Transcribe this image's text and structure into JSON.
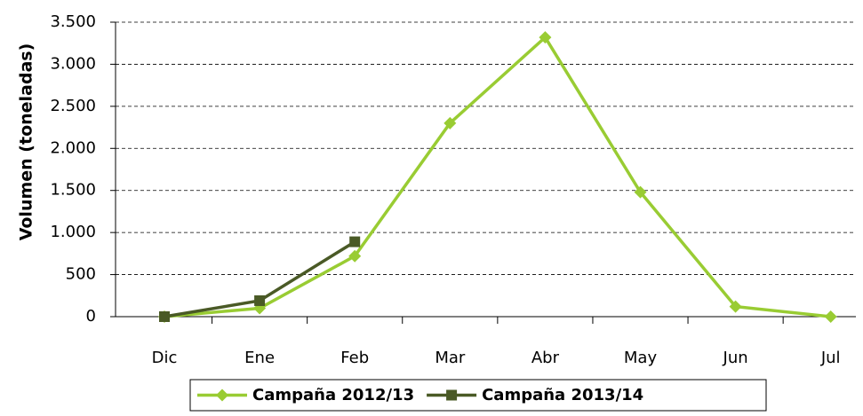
{
  "chart_data": {
    "type": "line",
    "y_label": "Volumen (toneladas)",
    "categories": [
      "Dic",
      "Ene",
      "Feb",
      "Mar",
      "Abr",
      "May",
      "Jun",
      "Jul"
    ],
    "series": [
      {
        "name": "Campaña 2012/13",
        "color": "#99cc33",
        "marker": "diamond",
        "values": [
          0,
          100,
          720,
          2300,
          3320,
          1480,
          120,
          0
        ]
      },
      {
        "name": "Campaña 2013/14",
        "color": "#4a5a26",
        "marker": "square",
        "values": [
          0,
          190,
          890,
          null,
          null,
          null,
          null,
          null
        ]
      }
    ],
    "ylim": [
      0,
      3500
    ],
    "yticks": [
      0,
      500,
      {
        "value": 1000,
        "label": "1.000"
      },
      {
        "value": 1500,
        "label": "1.500"
      },
      {
        "value": 2000,
        "label": "2.000"
      },
      {
        "value": 2500,
        "label": "2.500"
      },
      {
        "value": 3000,
        "label": "3.000"
      },
      {
        "value": 3500,
        "label": "3.500"
      }
    ],
    "grid": true,
    "legend": "bottom"
  }
}
